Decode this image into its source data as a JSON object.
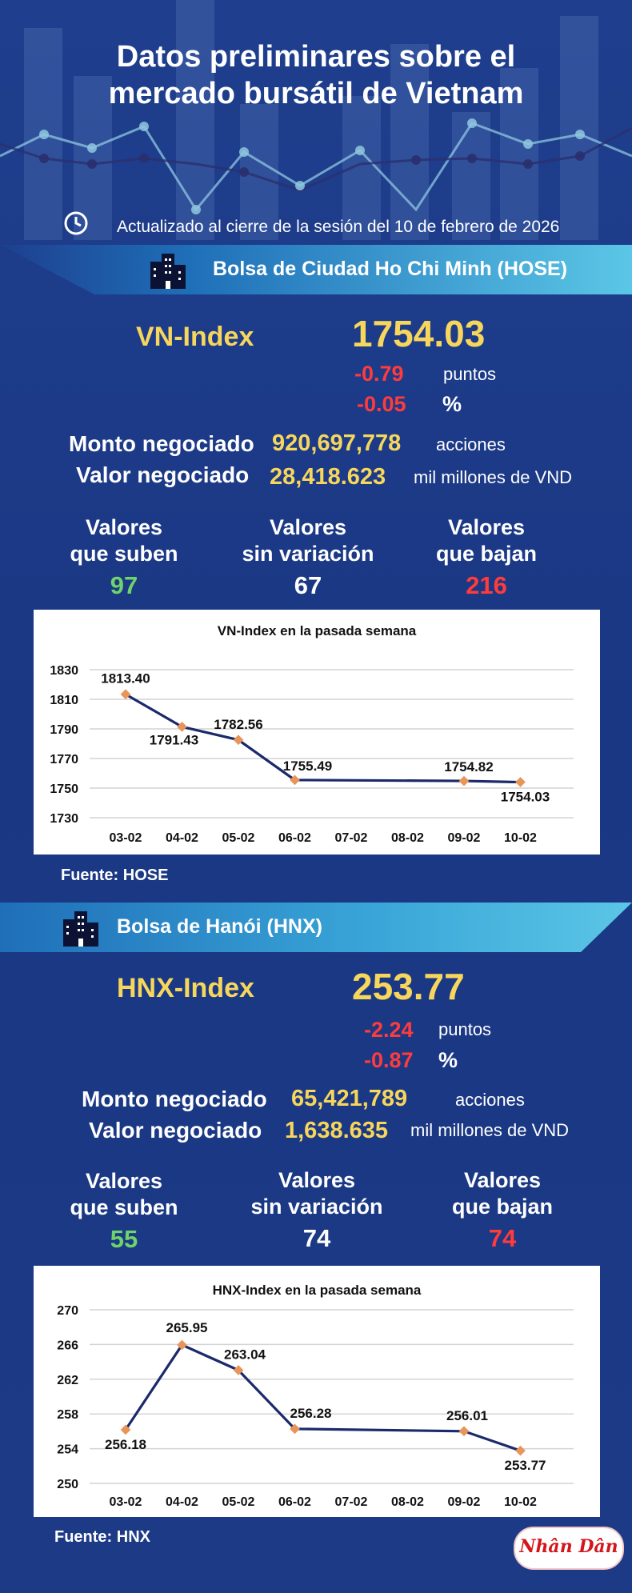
{
  "header": {
    "title_line1": "Datos preliminares sobre el",
    "title_line2": "mercado bursátil de Vietnam",
    "updated": "Actualizado al cierre de la sesión del 10 de febrero de 2026"
  },
  "hose": {
    "exchange": "Bolsa de Ciudad Ho Chi Minh (HOSE)",
    "index_name": "VN-Index",
    "index_value": "1754.03",
    "change_points": "-0.79",
    "points_label": "puntos",
    "change_percent": "-0.05",
    "percent_label": "%",
    "volume_label": "Monto negociado",
    "volume_value": "920,697,778",
    "volume_unit": "acciones",
    "value_label": "Valor negociado",
    "value_value": "28,418.623",
    "value_unit": "mil millones de VND",
    "up_label_1": "Valores",
    "up_label_2": "que suben",
    "up_count": "97",
    "flat_label_1": "Valores",
    "flat_label_2": "sin variación",
    "flat_count": "67",
    "down_label_1": "Valores",
    "down_label_2": "que bajan",
    "down_count": "216",
    "source": "Fuente: HOSE"
  },
  "hnx": {
    "exchange": "Bolsa de Hanói (HNX)",
    "index_name": "HNX-Index",
    "index_value": "253.77",
    "change_points": "-2.24",
    "points_label": "puntos",
    "change_percent": "-0.87",
    "percent_label": "%",
    "volume_label": "Monto negociado",
    "volume_value": "65,421,789",
    "volume_unit": "acciones",
    "value_label": "Valor negociado",
    "value_value": "1,638.635",
    "value_unit": "mil millones de VND",
    "up_label_1": "Valores",
    "up_label_2": "que suben",
    "up_count": "55",
    "flat_label_1": "Valores",
    "flat_label_2": "sin variación",
    "flat_count": "74",
    "down_label_1": "Valores",
    "down_label_2": "que bajan",
    "down_count": "74",
    "source": "Fuente:  HNX"
  },
  "logo_text": "Nhân Dân",
  "colors": {
    "accent_yellow": "#f7d65c",
    "down_red": "#ff3b3b",
    "up_green": "#6fd36a",
    "line_navy": "#1b2a6b",
    "marker": "#e8955a"
  },
  "chart_data": [
    {
      "type": "line",
      "title": "VN-Index en la pasada semana",
      "categories": [
        "03-02",
        "04-02",
        "05-02",
        "06-02",
        "07-02",
        "08-02",
        "09-02",
        "10-02"
      ],
      "yticks": [
        1730,
        1750,
        1770,
        1790,
        1810,
        1830
      ],
      "ylim": [
        1730,
        1830
      ],
      "grid": true,
      "series": [
        {
          "values": [
            1813.4,
            1791.43,
            1782.56,
            1755.49,
            null,
            null,
            1754.82,
            1754.03
          ]
        }
      ],
      "labels": [
        "1813.40",
        "1791.43",
        "1782.56",
        "1755.49",
        "",
        "",
        "1754.82",
        "1754.03"
      ]
    },
    {
      "type": "line",
      "title": "HNX-Index en la pasada semana",
      "categories": [
        "03-02",
        "04-02",
        "05-02",
        "06-02",
        "07-02",
        "08-02",
        "09-02",
        "10-02"
      ],
      "yticks": [
        250,
        254,
        258,
        262,
        266,
        270
      ],
      "ylim": [
        250,
        270
      ],
      "grid": true,
      "series": [
        {
          "values": [
            256.18,
            265.95,
            263.04,
            256.28,
            null,
            null,
            256.01,
            253.77
          ]
        }
      ],
      "labels": [
        "256.18",
        "265.95",
        "263.04",
        "256.28",
        "",
        "",
        "256.01",
        "253.77"
      ]
    }
  ]
}
